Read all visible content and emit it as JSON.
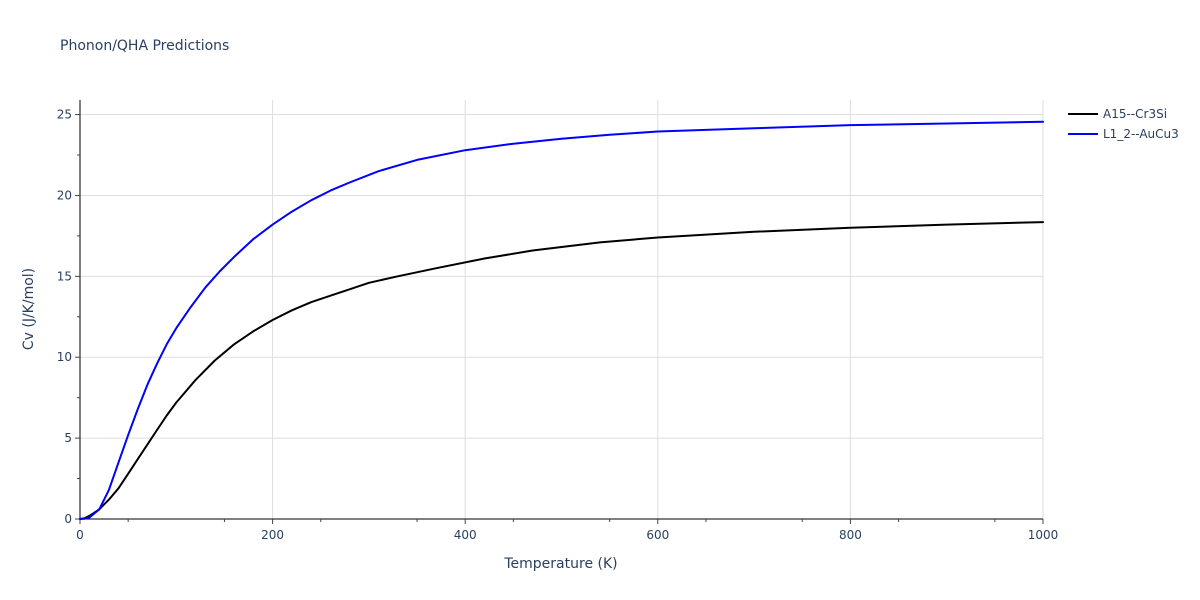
{
  "chart_data": {
    "type": "line",
    "title": "Phonon/QHA Predictions",
    "xlabel": "Temperature (K)",
    "ylabel": "Cv (J/K/mol)",
    "xlim": [
      0,
      1000
    ],
    "ylim": [
      0,
      25.9
    ],
    "x_ticks": [
      0,
      200,
      400,
      600,
      800,
      1000
    ],
    "y_ticks": [
      0,
      5,
      10,
      15,
      20,
      25
    ],
    "grid": true,
    "legend_position": "top-right",
    "series": [
      {
        "name": "A15--Cr3Si",
        "color": "#000000",
        "x": [
          0,
          5,
          10,
          20,
          30,
          40,
          50,
          60,
          70,
          80,
          90,
          100,
          120,
          140,
          160,
          180,
          200,
          220,
          240,
          260,
          280,
          300,
          330,
          370,
          420,
          470,
          540,
          600,
          700,
          800,
          900,
          1000
        ],
        "y": [
          0,
          0.05,
          0.2,
          0.6,
          1.2,
          1.9,
          2.8,
          3.7,
          4.6,
          5.5,
          6.4,
          7.2,
          8.6,
          9.8,
          10.8,
          11.6,
          12.3,
          12.9,
          13.4,
          13.8,
          14.2,
          14.6,
          15.0,
          15.5,
          16.1,
          16.6,
          17.1,
          17.4,
          17.75,
          18.0,
          18.2,
          18.35
        ]
      },
      {
        "name": "L1_2--AuCu3",
        "color": "#0000ff",
        "x": [
          0,
          5,
          10,
          20,
          30,
          40,
          50,
          60,
          70,
          80,
          90,
          100,
          115,
          130,
          145,
          160,
          180,
          200,
          220,
          240,
          260,
          280,
          310,
          350,
          400,
          450,
          500,
          550,
          600,
          700,
          800,
          900,
          1000
        ],
        "y": [
          0,
          0.02,
          0.1,
          0.6,
          1.8,
          3.5,
          5.2,
          6.8,
          8.3,
          9.6,
          10.8,
          11.8,
          13.1,
          14.3,
          15.3,
          16.2,
          17.3,
          18.2,
          19.0,
          19.7,
          20.3,
          20.8,
          21.5,
          22.2,
          22.8,
          23.2,
          23.5,
          23.75,
          23.95,
          24.15,
          24.35,
          24.45,
          24.55
        ]
      }
    ]
  }
}
